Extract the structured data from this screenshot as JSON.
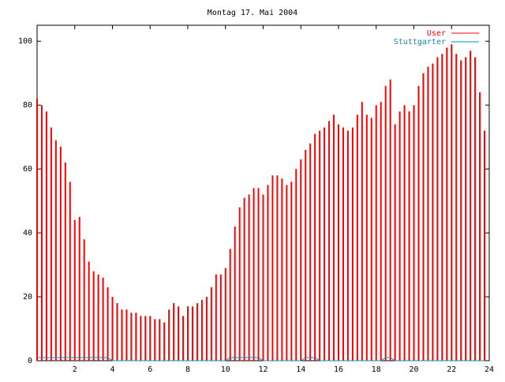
{
  "chart_data": {
    "type": "impulses",
    "title": "Montag 17. Mai 2004",
    "x": [
      0,
      0.25,
      0.5,
      0.75,
      1,
      1.25,
      1.5,
      1.75,
      2,
      2.25,
      2.5,
      2.75,
      3,
      3.25,
      3.5,
      3.75,
      4,
      4.25,
      4.5,
      4.75,
      5,
      5.25,
      5.5,
      5.75,
      6,
      6.25,
      6.5,
      6.75,
      7,
      7.25,
      7.5,
      7.75,
      8,
      8.25,
      8.5,
      8.75,
      9,
      9.25,
      9.5,
      9.75,
      10,
      10.25,
      10.5,
      10.75,
      11,
      11.25,
      11.5,
      11.75,
      12,
      12.25,
      12.5,
      12.75,
      13,
      13.25,
      13.5,
      13.75,
      14,
      14.25,
      14.5,
      14.75,
      15,
      15.25,
      15.5,
      15.75,
      16,
      16.25,
      16.5,
      16.75,
      17,
      17.25,
      17.5,
      17.75,
      18,
      18.25,
      18.5,
      18.75,
      19,
      19.25,
      19.5,
      19.75,
      20,
      20.25,
      20.5,
      20.75,
      21,
      21.25,
      21.5,
      21.75,
      22,
      22.25,
      22.5,
      22.75,
      23,
      23.25,
      23.5,
      23.75
    ],
    "series": [
      {
        "name": "User",
        "color": "#ff0000",
        "style": "impulses",
        "values": [
          82,
          80,
          78,
          73,
          69,
          67,
          62,
          56,
          44,
          45,
          38,
          31,
          28,
          27,
          26,
          23,
          20,
          18,
          16,
          16,
          15,
          15,
          14,
          14,
          14,
          13,
          13,
          12,
          16,
          18,
          17,
          14,
          17,
          17,
          18,
          19,
          20,
          23,
          27,
          27,
          29,
          35,
          42,
          48,
          51,
          52,
          54,
          54,
          52,
          55,
          58,
          58,
          57,
          55,
          56,
          60,
          63,
          66,
          68,
          71,
          72,
          73,
          75,
          77,
          74,
          73,
          72,
          73,
          77,
          81,
          77,
          76,
          80,
          81,
          86,
          88,
          74,
          78,
          80,
          78,
          80,
          86,
          90,
          92,
          93,
          95,
          96,
          98,
          99,
          96,
          94,
          95,
          97,
          95,
          84,
          72
        ]
      },
      {
        "name": "Stuttgarter",
        "color": "#0090c0",
        "style": "lines",
        "values": [
          1,
          1,
          1,
          1,
          1,
          1,
          1,
          1,
          1,
          1,
          1,
          1,
          1,
          1,
          1,
          1,
          0,
          0,
          0,
          0,
          0,
          0,
          0,
          0,
          0,
          0,
          0,
          0,
          0,
          0,
          0,
          0,
          0,
          0,
          0,
          0,
          0,
          0,
          0,
          0,
          0,
          1,
          1,
          1,
          1,
          1,
          1,
          1,
          0,
          0,
          0,
          0,
          0,
          0,
          0,
          0,
          0,
          1,
          1,
          1,
          0,
          0,
          0,
          0,
          0,
          0,
          0,
          0,
          0,
          0,
          0,
          0,
          0,
          0,
          1,
          1,
          0,
          0,
          0,
          0,
          0,
          0,
          0,
          0,
          0,
          0,
          0,
          0,
          0,
          0,
          0,
          0,
          0,
          0,
          0,
          0
        ]
      }
    ],
    "xlim": [
      0,
      24
    ],
    "xticks": [
      2,
      4,
      6,
      8,
      10,
      12,
      14,
      16,
      18,
      20,
      22,
      24
    ],
    "ylim": [
      0,
      105
    ],
    "yticks": [
      0,
      20,
      40,
      60,
      80,
      100
    ],
    "legend": "top-right"
  }
}
